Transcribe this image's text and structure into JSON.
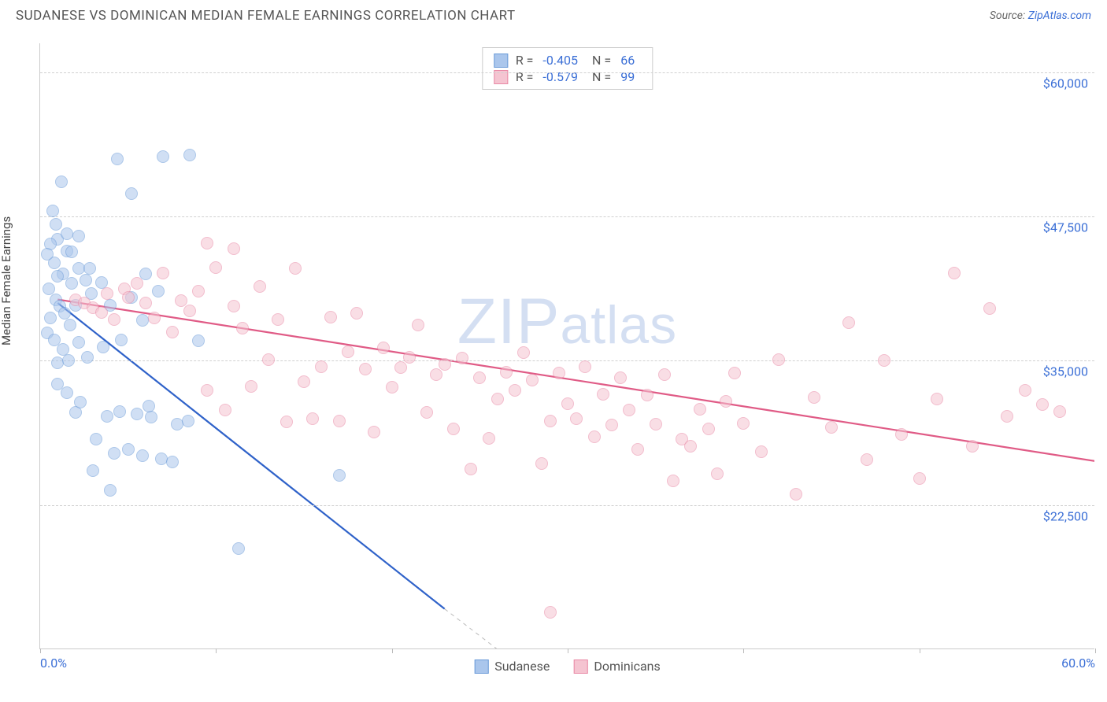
{
  "header": {
    "title": "SUDANESE VS DOMINICAN MEDIAN FEMALE EARNINGS CORRELATION CHART",
    "source_prefix": "Source: ",
    "source_name": "ZipAtlas.com"
  },
  "chart": {
    "type": "scatter",
    "y_axis_label": "Median Female Earnings",
    "watermark": "ZIPatlas",
    "background_color": "#ffffff",
    "grid_color": "#d0d0d0",
    "axis_color": "#cccccc",
    "xlim": [
      0,
      60
    ],
    "ylim": [
      10000,
      62500
    ],
    "x_ticks": [
      0,
      10,
      20,
      30,
      40,
      50,
      60
    ],
    "x_tick_labels": {
      "0": "0.0%",
      "60": "60.0%"
    },
    "y_gridlines": [
      22500,
      35000,
      47500,
      60000
    ],
    "y_tick_labels": {
      "22500": "$22,500",
      "35000": "$35,000",
      "47500": "$47,500",
      "60000": "$60,000"
    },
    "series": [
      {
        "id": "sudanese",
        "label": "Sudanese",
        "fill_color": "#aac6ec",
        "stroke_color": "#6a9ad8",
        "fill_opacity": 0.55,
        "line_color": "#2f62c9",
        "marker_radius": 8,
        "R": "-0.405",
        "N": "66",
        "regression": {
          "x1": 1,
          "y1": 40000,
          "x2": 23,
          "y2": 13500
        },
        "dash_extension": {
          "x1": 23,
          "y1": 13500,
          "x2": 26,
          "y2": 10000
        },
        "points": [
          [
            0.7,
            48000
          ],
          [
            1.2,
            50500
          ],
          [
            1.0,
            45500
          ],
          [
            0.8,
            43500
          ],
          [
            1.5,
            44500
          ],
          [
            1.3,
            42500
          ],
          [
            0.5,
            41200
          ],
          [
            1.8,
            41700
          ],
          [
            2.2,
            43000
          ],
          [
            2.6,
            42000
          ],
          [
            0.9,
            40300
          ],
          [
            1.1,
            39700
          ],
          [
            1.4,
            39100
          ],
          [
            0.6,
            38700
          ],
          [
            2.0,
            39800
          ],
          [
            2.9,
            40800
          ],
          [
            3.5,
            41800
          ],
          [
            1.7,
            38100
          ],
          [
            0.4,
            37400
          ],
          [
            0.8,
            36800
          ],
          [
            1.3,
            36000
          ],
          [
            2.2,
            36600
          ],
          [
            2.7,
            35300
          ],
          [
            3.6,
            36200
          ],
          [
            1.0,
            34800
          ],
          [
            1.6,
            35000
          ],
          [
            4.4,
            52500
          ],
          [
            5.2,
            49500
          ],
          [
            7.0,
            52700
          ],
          [
            8.5,
            52800
          ],
          [
            6.0,
            42500
          ],
          [
            6.7,
            41000
          ],
          [
            5.2,
            40500
          ],
          [
            4.0,
            39800
          ],
          [
            5.8,
            38500
          ],
          [
            4.6,
            36800
          ],
          [
            3.8,
            30200
          ],
          [
            4.5,
            30600
          ],
          [
            5.5,
            30400
          ],
          [
            6.3,
            30100
          ],
          [
            3.2,
            28200
          ],
          [
            4.2,
            27000
          ],
          [
            5.0,
            27300
          ],
          [
            5.8,
            26800
          ],
          [
            6.9,
            26500
          ],
          [
            7.5,
            26200
          ],
          [
            3.0,
            25500
          ],
          [
            4.0,
            23800
          ],
          [
            7.8,
            29500
          ],
          [
            8.4,
            29800
          ],
          [
            2.0,
            30500
          ],
          [
            6.2,
            31100
          ],
          [
            1.0,
            33000
          ],
          [
            1.5,
            32200
          ],
          [
            2.3,
            31400
          ],
          [
            11.3,
            18700
          ],
          [
            17.0,
            25100
          ],
          [
            9.0,
            36700
          ],
          [
            1.0,
            42300
          ],
          [
            1.8,
            44400
          ],
          [
            0.6,
            45100
          ],
          [
            1.5,
            46000
          ],
          [
            2.2,
            45800
          ],
          [
            0.4,
            44200
          ],
          [
            0.9,
            46800
          ],
          [
            2.8,
            43000
          ]
        ]
      },
      {
        "id": "dominicans",
        "label": "Dominicans",
        "fill_color": "#f5c4d1",
        "stroke_color": "#e988a5",
        "fill_opacity": 0.55,
        "line_color": "#e05b86",
        "marker_radius": 8,
        "R": "-0.579",
        "N": "99",
        "regression": {
          "x1": 1,
          "y1": 40300,
          "x2": 60,
          "y2": 26300
        },
        "points": [
          [
            2.0,
            40300
          ],
          [
            2.5,
            40000
          ],
          [
            3.0,
            39600
          ],
          [
            3.5,
            39200
          ],
          [
            3.8,
            40800
          ],
          [
            4.2,
            38600
          ],
          [
            4.8,
            41200
          ],
          [
            5.0,
            40500
          ],
          [
            5.5,
            41700
          ],
          [
            6.0,
            40000
          ],
          [
            6.5,
            38700
          ],
          [
            7.0,
            42600
          ],
          [
            7.5,
            37500
          ],
          [
            8.0,
            40200
          ],
          [
            8.5,
            39300
          ],
          [
            9.0,
            41000
          ],
          [
            9.5,
            32400
          ],
          [
            10.0,
            43100
          ],
          [
            10.5,
            30700
          ],
          [
            11.0,
            39700
          ],
          [
            11.5,
            37800
          ],
          [
            12.0,
            32800
          ],
          [
            12.5,
            41400
          ],
          [
            13.0,
            35100
          ],
          [
            13.5,
            38600
          ],
          [
            14.0,
            29700
          ],
          [
            14.5,
            43000
          ],
          [
            15.0,
            33200
          ],
          [
            15.5,
            30000
          ],
          [
            16.0,
            34500
          ],
          [
            16.5,
            38800
          ],
          [
            17.0,
            29800
          ],
          [
            17.5,
            35800
          ],
          [
            18.0,
            39100
          ],
          [
            18.5,
            34300
          ],
          [
            19.0,
            28800
          ],
          [
            19.5,
            36100
          ],
          [
            20.0,
            32700
          ],
          [
            20.5,
            34400
          ],
          [
            21.0,
            35300
          ],
          [
            21.5,
            38100
          ],
          [
            22.0,
            30500
          ],
          [
            22.5,
            33800
          ],
          [
            23.0,
            34700
          ],
          [
            23.5,
            29100
          ],
          [
            24.0,
            35200
          ],
          [
            24.5,
            25600
          ],
          [
            25.0,
            33500
          ],
          [
            25.5,
            28300
          ],
          [
            26.0,
            31700
          ],
          [
            26.5,
            34000
          ],
          [
            27.0,
            32400
          ],
          [
            27.5,
            35700
          ],
          [
            28.0,
            33300
          ],
          [
            28.5,
            26100
          ],
          [
            29.0,
            29800
          ],
          [
            29.5,
            33900
          ],
          [
            30.0,
            31300
          ],
          [
            30.5,
            30000
          ],
          [
            31.0,
            34500
          ],
          [
            31.5,
            28400
          ],
          [
            32.0,
            32100
          ],
          [
            32.5,
            29400
          ],
          [
            33.0,
            33500
          ],
          [
            33.5,
            30700
          ],
          [
            34.0,
            27300
          ],
          [
            34.5,
            32000
          ],
          [
            35.0,
            29500
          ],
          [
            35.5,
            33800
          ],
          [
            36.0,
            24600
          ],
          [
            36.5,
            28200
          ],
          [
            37.0,
            27600
          ],
          [
            37.5,
            30800
          ],
          [
            38.0,
            29100
          ],
          [
            38.5,
            25200
          ],
          [
            39.0,
            31500
          ],
          [
            39.5,
            33900
          ],
          [
            40.0,
            29600
          ],
          [
            29.0,
            13200
          ],
          [
            41.0,
            27100
          ],
          [
            42.0,
            35100
          ],
          [
            43.0,
            23400
          ],
          [
            44.0,
            31800
          ],
          [
            45.0,
            29200
          ],
          [
            46.0,
            38300
          ],
          [
            47.0,
            26400
          ],
          [
            48.0,
            35000
          ],
          [
            49.0,
            28600
          ],
          [
            50.0,
            24800
          ],
          [
            51.0,
            31700
          ],
          [
            52.0,
            42600
          ],
          [
            53.0,
            27600
          ],
          [
            54.0,
            39500
          ],
          [
            55.0,
            30200
          ],
          [
            56.0,
            32400
          ],
          [
            57.0,
            31200
          ],
          [
            58.0,
            30600
          ],
          [
            9.5,
            45200
          ],
          [
            11.0,
            44700
          ]
        ]
      }
    ],
    "legend_top": {
      "R_label": "R =",
      "N_label": "N ="
    }
  }
}
